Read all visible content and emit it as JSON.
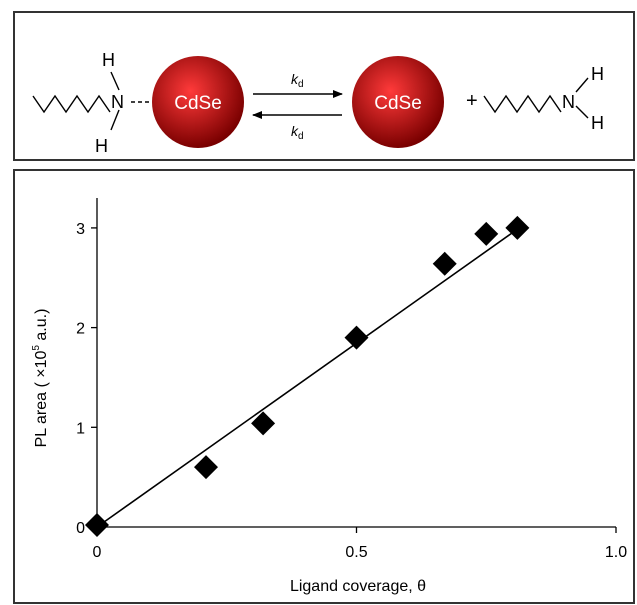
{
  "scheme": {
    "particle_label": "CdSe",
    "amine_H": "H",
    "amine_N": "N",
    "plus": "+",
    "rate_k": "k",
    "rate_sub": "d"
  },
  "colors": {
    "particle_center": "#ff3a3a",
    "particle_edge": "#7a0000",
    "frame": "#333333",
    "marker": "#000000"
  },
  "chart_data": {
    "type": "scatter",
    "xlabel": "Ligand coverage, θ",
    "ylabel_main": "PL area ( ×10",
    "ylabel_sup": "5",
    "ylabel_tail": " a.u.)",
    "xlim": [
      0,
      1.0
    ],
    "ylim": [
      0,
      3.3
    ],
    "x_ticks": [
      0,
      0.5,
      1.0
    ],
    "x_tick_labels": [
      "0",
      "0.5",
      "1.0"
    ],
    "y_ticks": [
      0,
      1,
      2,
      3
    ],
    "y_tick_labels": [
      "0",
      "1",
      "2",
      "3"
    ],
    "marker": "diamond",
    "series": [
      {
        "points": [
          {
            "x": 0.0,
            "y": 0.02
          },
          {
            "x": 0.21,
            "y": 0.6
          },
          {
            "x": 0.32,
            "y": 1.04
          },
          {
            "x": 0.5,
            "y": 1.9
          },
          {
            "x": 0.67,
            "y": 2.64
          },
          {
            "x": 0.75,
            "y": 2.94
          },
          {
            "x": 0.81,
            "y": 3.0
          }
        ]
      }
    ],
    "fit_line": {
      "x": [
        0.0,
        0.8
      ],
      "y": [
        0.0,
        2.95
      ]
    },
    "grid": false,
    "legend": "none"
  }
}
